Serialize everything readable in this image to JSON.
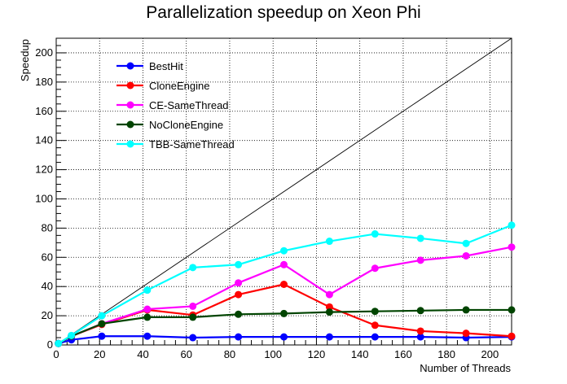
{
  "chart_data": {
    "type": "line",
    "title": "Parallelization speedup on Xeon Phi",
    "xlabel": "Number of Threads",
    "ylabel": "Speedup",
    "xlim": [
      0,
      210
    ],
    "ylim": [
      0,
      210
    ],
    "x_ticks": [
      0,
      20,
      40,
      60,
      80,
      100,
      120,
      140,
      160,
      180,
      200
    ],
    "y_ticks": [
      0,
      20,
      40,
      60,
      80,
      100,
      120,
      140,
      160,
      180,
      200
    ],
    "grid": true,
    "legend_position": "top-left",
    "reference_line": {
      "from": [
        0,
        0
      ],
      "to": [
        210,
        210
      ],
      "color": "#000000"
    },
    "series": [
      {
        "name": "BestHit",
        "color": "#0000ff",
        "x": [
          1,
          7,
          21,
          42,
          63,
          84,
          105,
          126,
          147,
          168,
          189,
          210
        ],
        "y": [
          1,
          3.5,
          6,
          6,
          5,
          5.5,
          5.5,
          5.5,
          5.5,
          5.5,
          5,
          5.5
        ]
      },
      {
        "name": "CloneEngine",
        "color": "#ff0000",
        "x": [
          1,
          7,
          21,
          42,
          63,
          84,
          105,
          126,
          147,
          168,
          189,
          210
        ],
        "y": [
          1,
          6,
          14,
          24,
          20.5,
          34.5,
          41.5,
          26,
          13.5,
          9.5,
          8,
          6
        ]
      },
      {
        "name": "CE-SameThread",
        "color": "#ff00ff",
        "x": [
          1,
          7,
          21,
          42,
          63,
          84,
          105,
          126,
          147,
          168,
          189,
          210
        ],
        "y": [
          1,
          6,
          14.5,
          24.5,
          26.5,
          42.5,
          55,
          34.5,
          52.5,
          58,
          61,
          67
        ]
      },
      {
        "name": "NoCloneEngine",
        "color": "#004400",
        "x": [
          1,
          7,
          21,
          42,
          63,
          84,
          105,
          126,
          147,
          168,
          189,
          210
        ],
        "y": [
          1,
          6,
          14.5,
          19,
          19,
          21,
          21.5,
          22.5,
          23,
          23.5,
          24,
          24
        ]
      },
      {
        "name": "TBB-SameThread",
        "color": "#00ffff",
        "x": [
          1,
          7,
          21,
          42,
          63,
          84,
          105,
          126,
          147,
          168,
          189,
          210
        ],
        "y": [
          1,
          6.5,
          20,
          37.5,
          53,
          55,
          64.5,
          71,
          76,
          73,
          69.5,
          82
        ]
      }
    ]
  }
}
